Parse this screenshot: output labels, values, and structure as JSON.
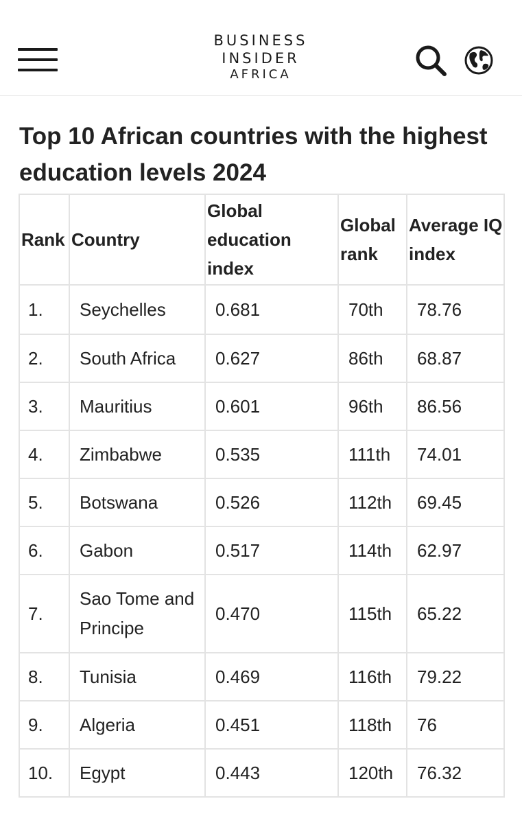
{
  "header": {
    "logo_line1": "BUSINESS",
    "logo_line2": "INSIDER",
    "logo_line3": "AFRICA",
    "menu_icon": "hamburger-menu-icon",
    "search_icon": "search-icon",
    "globe_icon": "globe-icon"
  },
  "article": {
    "title": "Top 10 African countries with the highest education levels 2024"
  },
  "table": {
    "columns": [
      "Rank",
      "Country",
      "Global education index",
      "Global rank",
      "Average IQ index"
    ],
    "rows": [
      {
        "rank": "1.",
        "country": "Seychelles",
        "index": "0.681",
        "global_rank": "70th",
        "iq": "78.76"
      },
      {
        "rank": "2.",
        "country": "South Africa",
        "index": "0.627",
        "global_rank": "86th",
        "iq": "68.87"
      },
      {
        "rank": "3.",
        "country": "Mauritius",
        "index": "0.601",
        "global_rank": "96th",
        "iq": "86.56"
      },
      {
        "rank": "4.",
        "country": "Zimbabwe",
        "index": "0.535",
        "global_rank": "111th",
        "iq": "74.01"
      },
      {
        "rank": "5.",
        "country": "Botswana",
        "index": "0.526",
        "global_rank": "112th",
        "iq": "69.45"
      },
      {
        "rank": "6.",
        "country": "Gabon",
        "index": "0.517",
        "global_rank": "114th",
        "iq": "62.97"
      },
      {
        "rank": "7.",
        "country": "Sao Tome and Principe",
        "index": "0.470",
        "global_rank": "115th",
        "iq": "65.22"
      },
      {
        "rank": "8.",
        "country": "Tunisia",
        "index": "0.469",
        "global_rank": "116th",
        "iq": "79.22"
      },
      {
        "rank": "9.",
        "country": "Algeria",
        "index": "0.451",
        "global_rank": "118th",
        "iq": "76"
      },
      {
        "rank": "10.",
        "country": "Egypt",
        "index": "0.443",
        "global_rank": "120th",
        "iq": "76.32"
      }
    ]
  }
}
